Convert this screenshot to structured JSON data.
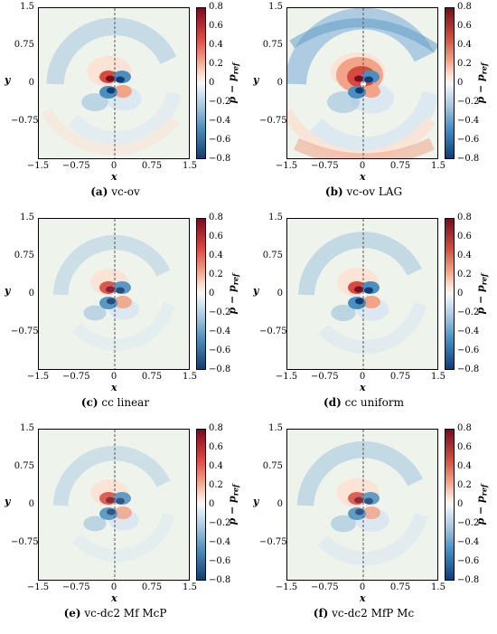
{
  "colors": {
    "background": "#eef3ec",
    "pos_light": "#fbe3d6",
    "pos_mid": "#f2a488",
    "pos_strong": "#d64b40",
    "pos_dark": "#7a0b21",
    "neg_light": "#dbe8f2",
    "neg_mid": "#a7c8e0",
    "neg_strong": "#4a8fc0",
    "neg_dark": "#0f3c74"
  },
  "axes": {
    "xlabel": "x",
    "ylabel": "y",
    "x_ticks": [
      "−1.5",
      "−0.75",
      "0",
      "0.75",
      "1.5"
    ],
    "y_ticks": [
      "1.5",
      "0.75",
      "0",
      "−0.75"
    ],
    "colorbar_ticks": [
      "0.8",
      "0.6",
      "0.4",
      "0.2",
      "0",
      "−0.2",
      "−0.4",
      "−0.6",
      "−0.8"
    ],
    "colorbar_label": "p − p",
    "colorbar_label_sub": "ref"
  },
  "chart_data": [
    {
      "type": "heatmap",
      "tag": "(a)",
      "caption": "vc-ov",
      "xlim": [
        -1.5,
        1.5
      ],
      "ylim": [
        -1.5,
        1.5
      ],
      "clim": [
        -0.8,
        0.8
      ],
      "colormap": "RdBu_r",
      "dashed_line_x": 0
    },
    {
      "type": "heatmap",
      "tag": "(b)",
      "caption": "vc-ov LAG",
      "xlim": [
        -1.5,
        1.5
      ],
      "ylim": [
        -1.5,
        1.5
      ],
      "clim": [
        -0.8,
        0.8
      ],
      "colormap": "RdBu_r",
      "dashed_line_x": 0
    },
    {
      "type": "heatmap",
      "tag": "(c)",
      "caption": "cc linear",
      "xlim": [
        -1.5,
        1.5
      ],
      "ylim": [
        -1.5,
        1.5
      ],
      "clim": [
        -0.8,
        0.8
      ],
      "colormap": "RdBu_r",
      "dashed_line_x": 0
    },
    {
      "type": "heatmap",
      "tag": "(d)",
      "caption": "cc uniform",
      "xlim": [
        -1.5,
        1.5
      ],
      "ylim": [
        -1.5,
        1.5
      ],
      "clim": [
        -0.8,
        0.8
      ],
      "colormap": "RdBu_r",
      "dashed_line_x": 0
    },
    {
      "type": "heatmap",
      "tag": "(e)",
      "caption": "vc-dc2 Mf McP",
      "xlim": [
        -1.5,
        1.5
      ],
      "ylim": [
        -1.5,
        1.5
      ],
      "clim": [
        -0.8,
        0.8
      ],
      "colormap": "RdBu_r",
      "dashed_line_x": 0
    },
    {
      "type": "heatmap",
      "tag": "(f)",
      "caption": "vc-dc2 MfP Mc",
      "xlim": [
        -1.5,
        1.5
      ],
      "ylim": [
        -1.5,
        1.5
      ],
      "clim": [
        -0.8,
        0.8
      ],
      "colormap": "RdBu_r",
      "dashed_line_x": 0
    }
  ]
}
